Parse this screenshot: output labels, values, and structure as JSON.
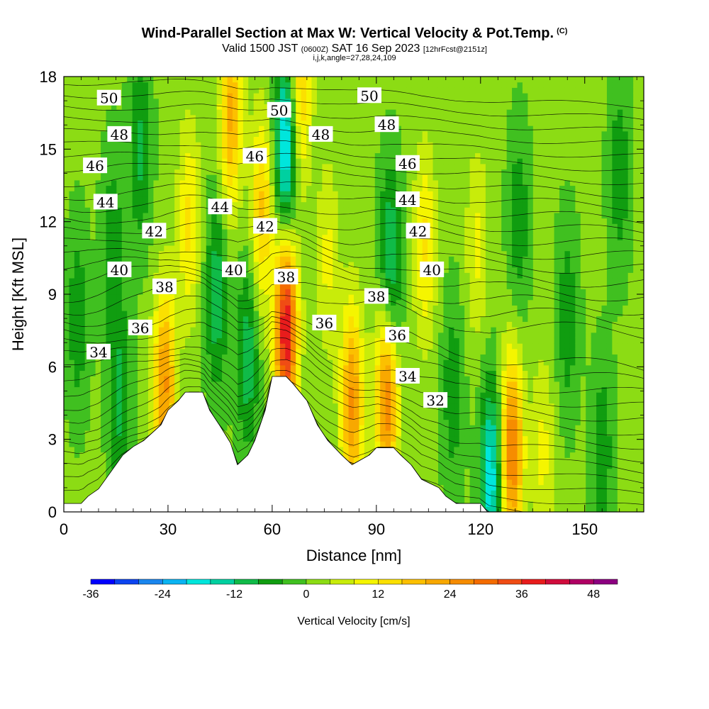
{
  "title": "Wind-Parallel Section at Max W: Vertical Velocity & Pot.Temp.",
  "title_mark": "(C)",
  "subtitle_parts": [
    "Valid 1500 JST",
    "(0600Z)",
    "SAT 16 Sep 2023",
    "[12hrFcst@2151z]"
  ],
  "subtitle2": "i,j,k,angle=27,28,24,109",
  "chart_data": {
    "type": "heatmap",
    "xlabel": "Distance [nm]",
    "ylabel": "Height [Kft MSL]",
    "xlim": [
      0,
      167
    ],
    "ylim": [
      0,
      18
    ],
    "x_ticks": [
      "0",
      "30",
      "60",
      "90",
      "120",
      "150"
    ],
    "x_tick_values": [
      0,
      30,
      60,
      90,
      120,
      150
    ],
    "y_ticks": [
      "0",
      "3",
      "6",
      "9",
      "12",
      "15",
      "18"
    ],
    "y_tick_values": [
      0,
      3,
      6,
      9,
      12,
      15,
      18
    ],
    "colorbar": {
      "label": "Vertical Velocity [cm/s]",
      "levels": [
        -36,
        -32,
        -28,
        -24,
        -20,
        -16,
        -12,
        -8,
        -4,
        0,
        4,
        8,
        12,
        16,
        20,
        24,
        28,
        32,
        36,
        40,
        44,
        48,
        52
      ],
      "tick_labels": [
        "-36",
        "-24",
        "-12",
        "0",
        "12",
        "24",
        "36",
        "48"
      ],
      "tick_values": [
        -36,
        -24,
        -12,
        0,
        12,
        24,
        36,
        48
      ],
      "colors": [
        "#0000ff",
        "#0c44f0",
        "#1a86ee",
        "#0ab4f2",
        "#00e6dc",
        "#00d0a0",
        "#10bb48",
        "#109d10",
        "#40c020",
        "#8cdc14",
        "#c8ec0a",
        "#f5f500",
        "#fbe000",
        "#fcc000",
        "#f8a800",
        "#f68c00",
        "#f46c00",
        "#f04c14",
        "#e81c1c",
        "#d00c3c",
        "#b00064",
        "#8c0080",
        "#64009c"
      ]
    },
    "vertical_velocity_features": [
      {
        "x": 4,
        "z": 8.0,
        "w": -8
      },
      {
        "x": 14,
        "z": 11.0,
        "w": -8
      },
      {
        "x": 16,
        "z": 4.5,
        "w": -10
      },
      {
        "x": 22,
        "z": 15.0,
        "w": -10
      },
      {
        "x": 29,
        "z": 5.2,
        "w": 24
      },
      {
        "x": 36,
        "z": 12.0,
        "w": 12
      },
      {
        "x": 44,
        "z": 9.0,
        "w": -12
      },
      {
        "x": 48,
        "z": 16.5,
        "w": 20
      },
      {
        "x": 53,
        "z": 6.5,
        "w": -12
      },
      {
        "x": 57,
        "z": 12.5,
        "w": 16
      },
      {
        "x": 64,
        "z": 15.0,
        "w": -24
      },
      {
        "x": 64,
        "z": 7.6,
        "w": 40
      },
      {
        "x": 68,
        "z": 17.5,
        "w": 16
      },
      {
        "x": 76,
        "z": 10.5,
        "w": 8
      },
      {
        "x": 83,
        "z": 4.5,
        "w": 24
      },
      {
        "x": 93,
        "z": 4.8,
        "w": 28
      },
      {
        "x": 94,
        "z": 10.0,
        "w": -16
      },
      {
        "x": 104,
        "z": 11.0,
        "w": 12
      },
      {
        "x": 112,
        "z": 5.0,
        "w": -8
      },
      {
        "x": 119,
        "z": 11.0,
        "w": 8
      },
      {
        "x": 123,
        "z": 1.5,
        "w": -20
      },
      {
        "x": 129,
        "z": 2.5,
        "w": 28
      },
      {
        "x": 131,
        "z": 12.0,
        "w": -8
      },
      {
        "x": 138,
        "z": 2.5,
        "w": 8
      },
      {
        "x": 145,
        "z": 8.0,
        "w": -8
      },
      {
        "x": 155,
        "z": 2.5,
        "w": -8
      },
      {
        "x": 160,
        "z": 14.0,
        "w": -8
      }
    ],
    "terrain_height": [
      [
        0,
        0.35
      ],
      [
        5,
        0.35
      ],
      [
        7,
        0.65
      ],
      [
        10,
        0.95
      ],
      [
        12,
        1.35
      ],
      [
        15,
        1.95
      ],
      [
        17,
        2.35
      ],
      [
        20,
        2.7
      ],
      [
        23,
        2.95
      ],
      [
        28,
        3.6
      ],
      [
        30,
        4.2
      ],
      [
        33,
        4.6
      ],
      [
        35,
        4.95
      ],
      [
        40,
        4.95
      ],
      [
        42,
        4.2
      ],
      [
        45,
        3.55
      ],
      [
        48,
        2.85
      ],
      [
        50,
        1.95
      ],
      [
        53,
        2.35
      ],
      [
        55,
        2.95
      ],
      [
        58,
        4.2
      ],
      [
        60,
        5.6
      ],
      [
        64,
        5.6
      ],
      [
        66,
        5.3
      ],
      [
        70,
        4.6
      ],
      [
        73,
        3.6
      ],
      [
        76,
        2.95
      ],
      [
        80,
        2.35
      ],
      [
        83,
        1.95
      ],
      [
        88,
        2.35
      ],
      [
        90,
        2.65
      ],
      [
        95,
        2.65
      ],
      [
        97,
        2.35
      ],
      [
        100,
        1.95
      ],
      [
        103,
        1.35
      ],
      [
        108,
        1.0
      ],
      [
        110,
        0.65
      ],
      [
        113,
        0.35
      ],
      [
        120,
        0.35
      ],
      [
        122,
        0.0
      ],
      [
        167,
        0.0
      ]
    ],
    "potential_temperature_contours": {
      "annotations": [
        {
          "label": "50",
          "x": 13,
          "z": 17.1
        },
        {
          "label": "48",
          "x": 16,
          "z": 15.6
        },
        {
          "label": "46",
          "x": 9,
          "z": 14.3
        },
        {
          "label": "44",
          "x": 12,
          "z": 12.8
        },
        {
          "label": "42",
          "x": 26,
          "z": 11.6
        },
        {
          "label": "40",
          "x": 16,
          "z": 10.0
        },
        {
          "label": "38",
          "x": 29,
          "z": 9.3
        },
        {
          "label": "36",
          "x": 22,
          "z": 7.6
        },
        {
          "label": "34",
          "x": 10,
          "z": 6.6
        },
        {
          "label": "44",
          "x": 45,
          "z": 12.6
        },
        {
          "label": "40",
          "x": 49,
          "z": 10.0
        },
        {
          "label": "46",
          "x": 55,
          "z": 14.7
        },
        {
          "label": "42",
          "x": 58,
          "z": 11.8
        },
        {
          "label": "50",
          "x": 62,
          "z": 16.6
        },
        {
          "label": "38",
          "x": 64,
          "z": 9.7
        },
        {
          "label": "48",
          "x": 74,
          "z": 15.6
        },
        {
          "label": "36",
          "x": 75,
          "z": 7.8
        },
        {
          "label": "50",
          "x": 88,
          "z": 17.2
        },
        {
          "label": "48",
          "x": 93,
          "z": 16.0
        },
        {
          "label": "46",
          "x": 99,
          "z": 14.4
        },
        {
          "label": "44",
          "x": 99,
          "z": 12.9
        },
        {
          "label": "42",
          "x": 102,
          "z": 11.6
        },
        {
          "label": "40",
          "x": 106,
          "z": 10.0
        },
        {
          "label": "38",
          "x": 90,
          "z": 8.9
        },
        {
          "label": "36",
          "x": 96,
          "z": 7.3
        },
        {
          "label": "34",
          "x": 99,
          "z": 5.6
        },
        {
          "label": "32",
          "x": 107,
          "z": 4.6
        }
      ]
    }
  }
}
